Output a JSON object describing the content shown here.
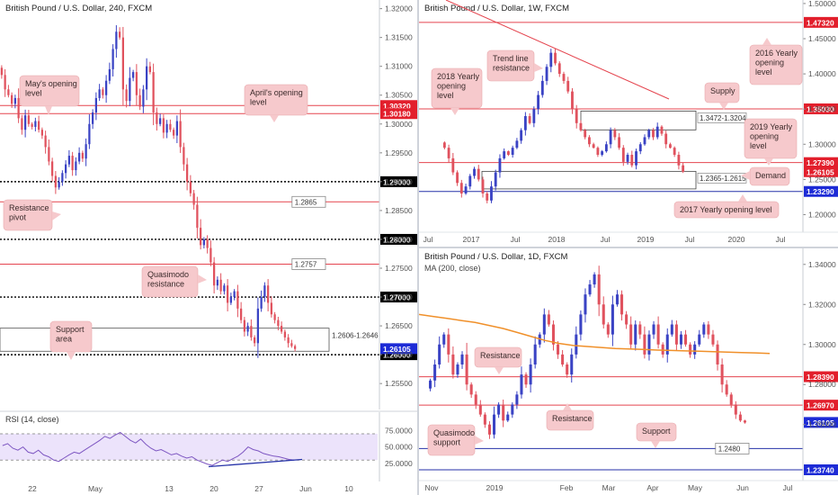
{
  "colors": {
    "up": "#3a43c4",
    "down": "#e0525e",
    "red_line": "#e5454f",
    "blue_line": "#2632a8",
    "ma": "#f0902a",
    "rsi": "#7e57c2",
    "rsi_band": "#ece3fb",
    "callout_bg": "#f6c9cc",
    "callout_text": "#3a2a2a",
    "black_tag": "#000000",
    "blue_tag": "#1d2bd6",
    "red_tag": "#e21f2c"
  },
  "chart_data": [
    {
      "id": "h4",
      "type": "candlestick",
      "title": "British Pound / U.S. Dollar, 240, FXCM",
      "ylim": [
        1.2505,
        1.3215
      ],
      "x_ticks": [
        "22",
        "May",
        "13",
        "20",
        "27",
        "Jun",
        "10"
      ],
      "y_ticks": [
        "1.32000",
        "1.31500",
        "1.31000",
        "1.30500",
        "1.30000",
        "1.29500",
        "1.29000",
        "1.28500",
        "1.28000",
        "1.27500",
        "1.27000",
        "1.26500",
        "1.26000",
        "1.25500"
      ],
      "closes": [
        1.3085,
        1.306,
        1.305,
        1.3035,
        1.3045,
        1.301,
        1.299,
        1.3015,
        1.3,
        1.2995,
        1.3005,
        1.299,
        1.298,
        1.296,
        1.2935,
        1.291,
        1.289,
        1.29,
        1.2915,
        1.293,
        1.2945,
        1.292,
        1.2935,
        1.295,
        1.294,
        1.2965,
        1.3,
        1.302,
        1.3045,
        1.306,
        1.305,
        1.3075,
        1.3095,
        1.313,
        1.316,
        1.315,
        1.306,
        1.304,
        1.308,
        1.309,
        1.305,
        1.303,
        1.306,
        1.31,
        1.309,
        1.302,
        1.3,
        1.301,
        1.2985,
        1.3,
        1.299,
        1.298,
        1.3005,
        1.296,
        1.293,
        1.29,
        1.288,
        1.286,
        1.282,
        1.279,
        1.28,
        1.2785,
        1.276,
        1.272,
        1.273,
        1.271,
        1.272,
        1.269,
        1.27,
        1.271,
        1.268,
        1.266,
        1.264,
        1.265,
        1.263,
        1.262,
        1.268,
        1.27,
        1.272,
        1.269,
        1.267,
        1.266,
        1.265,
        1.264,
        1.263,
        1.262,
        1.2615,
        1.261
      ],
      "levels": [
        {
          "value": 1.3032,
          "label": "1.30320",
          "style": "red-solid",
          "tag": "red"
        },
        {
          "value": 1.3018,
          "label": "1.30180",
          "style": "red-solid",
          "tag": "red"
        },
        {
          "value": 1.29,
          "label": "1.29000",
          "style": "black-dotted",
          "tag": "black"
        },
        {
          "value": 1.2865,
          "label": "1.2865",
          "style": "red-solid",
          "tag": "box"
        },
        {
          "value": 1.28,
          "label": "1.28000",
          "style": "black-dotted",
          "tag": "black"
        },
        {
          "value": 1.2757,
          "label": "1.2757",
          "style": "red-solid",
          "tag": "box"
        },
        {
          "value": 1.27,
          "label": "1.27000",
          "style": "black-dotted",
          "tag": "black"
        },
        {
          "value": 1.26,
          "label": "1.26000",
          "style": "black-dotted",
          "tag": "black"
        }
      ],
      "zone": {
        "low": 1.2606,
        "high": 1.2646,
        "label": "1.2606-1.2646"
      },
      "price_tag": {
        "value": 1.26105,
        "label": "1.26105"
      },
      "annotations": [
        "May's opening level",
        "April's opening level",
        "Resistance pivot",
        "Quasimodo resistance",
        "Support area"
      ],
      "rsi": {
        "title": "RSI (14, close)",
        "y_ticks": [
          "75.0000",
          "50.0000",
          "25.0000"
        ],
        "upper": 70,
        "lower": 30,
        "values": [
          52,
          55,
          48,
          45,
          50,
          42,
          40,
          45,
          38,
          35,
          30,
          28,
          33,
          38,
          42,
          40,
          45,
          50,
          55,
          60,
          66,
          63,
          68,
          72,
          66,
          60,
          56,
          62,
          54,
          48,
          44,
          46,
          42,
          38,
          40,
          36,
          33,
          35,
          30,
          27,
          24,
          22,
          26,
          30,
          28,
          32,
          36,
          42,
          50,
          46,
          44,
          40,
          38,
          36,
          35,
          33,
          31,
          30
        ]
      }
    },
    {
      "id": "weekly",
      "type": "candlestick",
      "title": "British Pound / U.S. Dollar, 1W, FXCM",
      "ylim": [
        1.175,
        1.505
      ],
      "x_ticks": [
        "Jul",
        "2017",
        "Jul",
        "2018",
        "Jul",
        "2019",
        "Jul",
        "2020",
        "Jul"
      ],
      "y_ticks": [
        "1.50000",
        "1.45000",
        "1.40000",
        "1.35000",
        "1.30000",
        "1.25000",
        "1.20000"
      ],
      "closes": [
        1.295,
        1.28,
        1.26,
        1.245,
        1.23,
        1.24,
        1.255,
        1.265,
        1.25,
        1.23,
        1.22,
        1.24,
        1.26,
        1.28,
        1.29,
        1.285,
        1.295,
        1.305,
        1.32,
        1.34,
        1.33,
        1.35,
        1.37,
        1.39,
        1.41,
        1.43,
        1.415,
        1.4,
        1.39,
        1.375,
        1.35,
        1.33,
        1.32,
        1.31,
        1.3,
        1.295,
        1.285,
        1.29,
        1.3,
        1.32,
        1.31,
        1.295,
        1.275,
        1.285,
        1.27,
        1.29,
        1.3,
        1.31,
        1.32,
        1.31,
        1.325,
        1.315,
        1.3,
        1.295,
        1.285,
        1.27,
        1.261
      ],
      "levels": [
        {
          "value": 1.4732,
          "label": "1.47320",
          "style": "red-solid",
          "tag": "red"
        },
        {
          "value": 1.3503,
          "label": "1.35030",
          "style": "red-solid",
          "tag": "red"
        },
        {
          "value": 1.2739,
          "label": "1.27390",
          "style": "red-solid",
          "tag": "red"
        },
        {
          "value": 1.2329,
          "label": "1.23290",
          "style": "blue-solid",
          "tag": "blue"
        }
      ],
      "zones": [
        {
          "low": 1.3204,
          "high": 1.3472,
          "label": "1.3472-1.3204"
        },
        {
          "low": 1.2365,
          "high": 1.2615,
          "label": "1.2365-1.2615"
        }
      ],
      "price_tag": {
        "value": 1.261,
        "label": "1.26105"
      },
      "annotations": [
        "Trend line resistance",
        "2018 Yearly opening level",
        "2016 Yearly opening level",
        "Supply",
        "2019 Yearly opening level",
        "Demand",
        "2017 Yearly opening level"
      ]
    },
    {
      "id": "daily",
      "type": "candlestick",
      "title": "British Pound / U.S. Dollar, 1D, FXCM",
      "indicator": "MA (200, close)",
      "ylim": [
        1.232,
        1.348
      ],
      "x_ticks": [
        "Nov",
        "2019",
        "Feb",
        "Mar",
        "Apr",
        "May",
        "Jun",
        "Jul"
      ],
      "y_ticks": [
        "1.34000",
        "1.32000",
        "1.30000",
        "1.28000",
        "1.26000"
      ],
      "closes": [
        1.282,
        1.29,
        1.3,
        1.305,
        1.295,
        1.285,
        1.29,
        1.295,
        1.28,
        1.275,
        1.27,
        1.265,
        1.26,
        1.255,
        1.265,
        1.27,
        1.262,
        1.265,
        1.27,
        1.275,
        1.285,
        1.28,
        1.29,
        1.3,
        1.305,
        1.315,
        1.31,
        1.3,
        1.295,
        1.29,
        1.285,
        1.295,
        1.305,
        1.315,
        1.325,
        1.33,
        1.335,
        1.32,
        1.31,
        1.305,
        1.32,
        1.325,
        1.315,
        1.31,
        1.3,
        1.31,
        1.305,
        1.295,
        1.305,
        1.31,
        1.3,
        1.295,
        1.305,
        1.31,
        1.3,
        1.305,
        1.3,
        1.295,
        1.3,
        1.305,
        1.31,
        1.305,
        1.3,
        1.29,
        1.28,
        1.275,
        1.27,
        1.265,
        1.262,
        1.261
      ],
      "ma": [
        1.315,
        1.314,
        1.313,
        1.312,
        1.311,
        1.3095,
        1.308,
        1.306,
        1.304,
        1.302,
        1.3005,
        1.2995,
        1.299,
        1.2985,
        1.298,
        1.2978,
        1.2975,
        1.2972,
        1.297,
        1.2968,
        1.2966,
        1.2964,
        1.2962,
        1.296,
        1.2958,
        1.2955
      ],
      "levels": [
        {
          "value": 1.2839,
          "label": "1.28390",
          "style": "red-solid",
          "tag": "red"
        },
        {
          "value": 1.2697,
          "label": "1.26970",
          "style": "red-solid",
          "tag": "red"
        },
        {
          "value": 1.248,
          "label": "1.2480",
          "style": "blue-solid",
          "tag": "box"
        },
        {
          "value": 1.2374,
          "label": "1.23740",
          "style": "blue-solid",
          "tag": "blue"
        }
      ],
      "price_tag": {
        "value": 1.26105,
        "label": "1.26105"
      },
      "annotations": [
        "Resistance",
        "Resistance",
        "Quasimodo support",
        "Support"
      ]
    }
  ]
}
